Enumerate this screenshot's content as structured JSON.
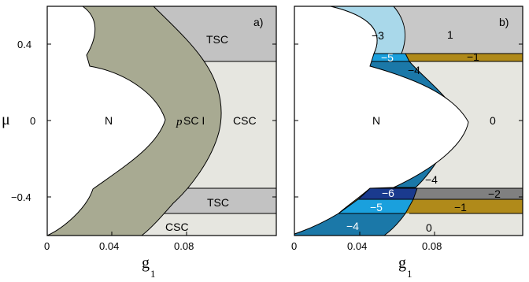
{
  "chart_data": [
    {
      "type": "phase-diagram",
      "panel_label": "a)",
      "xlabel": "g",
      "xlabel_sub": "1",
      "ylabel": "μ",
      "xlim": [
        0,
        0.11
      ],
      "ylim": [
        -0.6,
        0.6
      ],
      "xticks": [
        "0",
        "0.04",
        "0.08"
      ],
      "yticks": [
        "0.4",
        "0",
        "−0.4"
      ],
      "regions": [
        {
          "label": "N",
          "color": "#ffffff"
        },
        {
          "label_prefix": "p",
          "label": "SC I",
          "color": "#a8aa92"
        },
        {
          "label": "TSC",
          "color": "#c2c2c2",
          "mu_range": [
            0.31,
            0.6
          ]
        },
        {
          "label": "CSC",
          "color": "#e6e6e0",
          "mu_range": [
            -0.35,
            0.31
          ]
        },
        {
          "label": "TSC",
          "color": "#c2c2c2",
          "mu_range": [
            -0.48,
            -0.35
          ]
        },
        {
          "label": "CSC",
          "color": "#e6e6e0",
          "mu_range": [
            -0.6,
            -0.48
          ]
        }
      ]
    },
    {
      "type": "phase-diagram",
      "panel_label": "b)",
      "xlabel": "g",
      "xlabel_sub": "1",
      "xlim": [
        0,
        0.11
      ],
      "ylim": [
        -0.6,
        0.6
      ],
      "xticks": [
        "0",
        "0.04",
        "0.08"
      ],
      "regions": [
        {
          "label": "N",
          "color": "#ffffff"
        },
        {
          "label": "1",
          "color": "#c8c8c8",
          "mu_range": [
            0.35,
            0.6
          ]
        },
        {
          "label": "−1",
          "color": "#b08a1a",
          "mu_range": [
            0.31,
            0.35
          ]
        },
        {
          "label": "0",
          "color": "#e6e6e0",
          "mu_range": [
            -0.35,
            0.31
          ]
        },
        {
          "label": "−2",
          "color": "#808080",
          "mu_range": [
            -0.41,
            -0.35
          ]
        },
        {
          "label": "−1",
          "color": "#b08a1a",
          "mu_range": [
            -0.48,
            -0.41
          ]
        },
        {
          "label": "0",
          "color": "#e6e6e0",
          "mu_range": [
            -0.6,
            -0.48
          ]
        },
        {
          "label": "−3",
          "color": "#a9d8ea"
        },
        {
          "label": "−5",
          "color": "#1aa0dd"
        },
        {
          "label": "−4",
          "color": "#1b78a8"
        },
        {
          "label": "−4",
          "color": "#1b78a8"
        },
        {
          "label": "−6",
          "color": "#1a3a8e"
        },
        {
          "label": "−5",
          "color": "#1aa0dd"
        },
        {
          "label": "−4",
          "color": "#1b78a8"
        }
      ]
    }
  ]
}
